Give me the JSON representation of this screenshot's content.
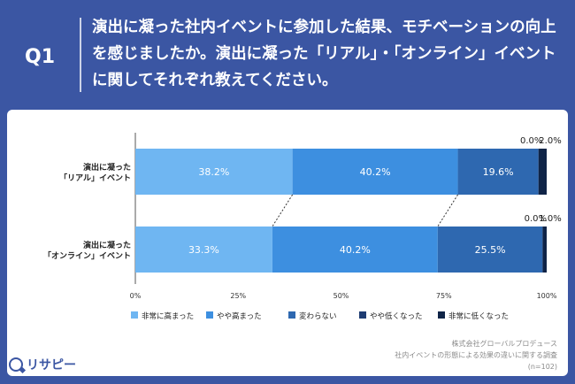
{
  "header": {
    "q_label": "Q1",
    "question": "演出に凝った社内イベントに参加した結果、モチベーションの向上を感じましたか。演出に凝った「リアル」・「オンライン」イベントに関してそれぞれ教えてください。"
  },
  "colors": {
    "background": "#3b56a3",
    "series": [
      "#6fb6f2",
      "#3d8fe0",
      "#2e68b0",
      "#1e3c72",
      "#0f2447"
    ]
  },
  "chart_data": {
    "type": "bar",
    "orientation": "horizontal",
    "stacked": true,
    "categories": [
      [
        "演出に凝った",
        "「リアル」イベント"
      ],
      [
        "演出に凝った",
        "「オンライン」イベント"
      ]
    ],
    "series": [
      {
        "name": "非常に高まった",
        "values": [
          38.2,
          33.3
        ]
      },
      {
        "name": "やや高まった",
        "values": [
          40.2,
          40.2
        ]
      },
      {
        "name": "変わらない",
        "values": [
          19.6,
          25.5
        ]
      },
      {
        "name": "やや低くなった",
        "values": [
          0.0,
          0.0
        ]
      },
      {
        "name": "非常に低くなった",
        "values": [
          2.0,
          1.0
        ]
      }
    ],
    "xlim": [
      0,
      100
    ],
    "x_ticks": [
      "0%",
      "25%",
      "50%",
      "75%",
      "100%"
    ],
    "value_format": "percent_1dp",
    "legend": "bottom",
    "grid": false
  },
  "source": {
    "company": "株式会社グローバルプロデュース",
    "survey": "社内イベントの形態による効果の違いに関する調査",
    "n": "(n=102)"
  },
  "logo": {
    "text": "リサピー"
  }
}
